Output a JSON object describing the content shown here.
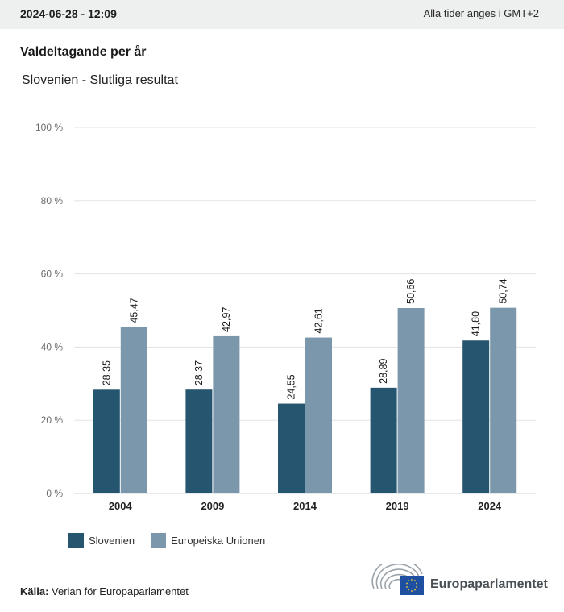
{
  "header": {
    "timestamp": "2024-06-28 - 12:09",
    "timezone_note": "Alla tider anges i GMT+2"
  },
  "title": "Valdeltagande per år",
  "subtitle": "Slovenien - Slutliga resultat",
  "colors": {
    "slovenia": "#25556f",
    "eu": "#7b97ab",
    "grid": "#e3e3e3"
  },
  "chart_data": {
    "type": "bar",
    "title": "Valdeltagande per år",
    "subtitle": "Slovenien - Slutliga resultat",
    "xlabel": "",
    "ylabel": "",
    "categories": [
      "2004",
      "2009",
      "2014",
      "2019",
      "2024"
    ],
    "series": [
      {
        "name": "Slovenien",
        "values": [
          28.35,
          28.37,
          24.55,
          28.89,
          41.8
        ],
        "labels": [
          "28,35",
          "28,37",
          "24,55",
          "28,89",
          "41,80"
        ]
      },
      {
        "name": "Europeiska Unionen",
        "values": [
          45.47,
          42.97,
          42.61,
          50.66,
          50.74
        ],
        "labels": [
          "45,47",
          "42,97",
          "42,61",
          "50,66",
          "50,74"
        ]
      }
    ],
    "ylim": [
      0,
      100
    ],
    "yticks": [
      0,
      20,
      40,
      60,
      80,
      100
    ],
    "ytick_labels": [
      "0 %",
      "20 %",
      "40 %",
      "60 %",
      "80 %",
      "100 %"
    ],
    "grid": true,
    "legend_position": "bottom-left"
  },
  "legend": {
    "items": [
      "Slovenien",
      "Europeiska Unionen"
    ]
  },
  "footer": {
    "source_label": "Källa:",
    "source_text": "Verian för Europaparlamentet",
    "logo_text": "Europaparlamentet"
  }
}
